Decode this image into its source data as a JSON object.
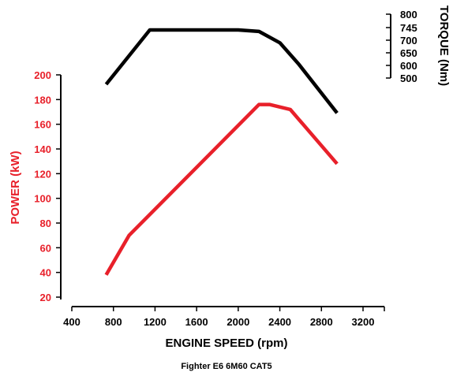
{
  "chart_data": {
    "type": "line",
    "caption": "Fighter E6 6M60 CAT5",
    "x_axis": {
      "label": "ENGINE SPEED (rpm)",
      "range": [
        400,
        3200
      ],
      "ticks": [
        400,
        800,
        1200,
        1600,
        2000,
        2400,
        2800,
        3200
      ]
    },
    "left_axis": {
      "label": "POWER (kW)",
      "range": [
        20,
        200
      ],
      "ticks": [
        20,
        40,
        60,
        80,
        100,
        120,
        140,
        160,
        180,
        200
      ],
      "color": "#e8202a"
    },
    "right_axis": {
      "label": "TORQUE (Nm)",
      "ticks": [
        500,
        600,
        650,
        700,
        745,
        800
      ],
      "color": "#000000"
    },
    "series": [
      {
        "name": "POWER (kW)",
        "axis": "left",
        "color": "#e8202a",
        "x": [
          730,
          950,
          2200,
          2300,
          2500,
          2950
        ],
        "y": [
          38,
          70,
          176,
          176,
          172,
          128
        ]
      },
      {
        "name": "TORQUE (Nm)",
        "axis": "right",
        "color": "#000000",
        "x": [
          730,
          1150,
          1600,
          2000,
          2200,
          2400,
          2580,
          2950
        ],
        "y": [
          680,
          752,
          752,
          752,
          750,
          735,
          707,
          642
        ]
      }
    ]
  }
}
